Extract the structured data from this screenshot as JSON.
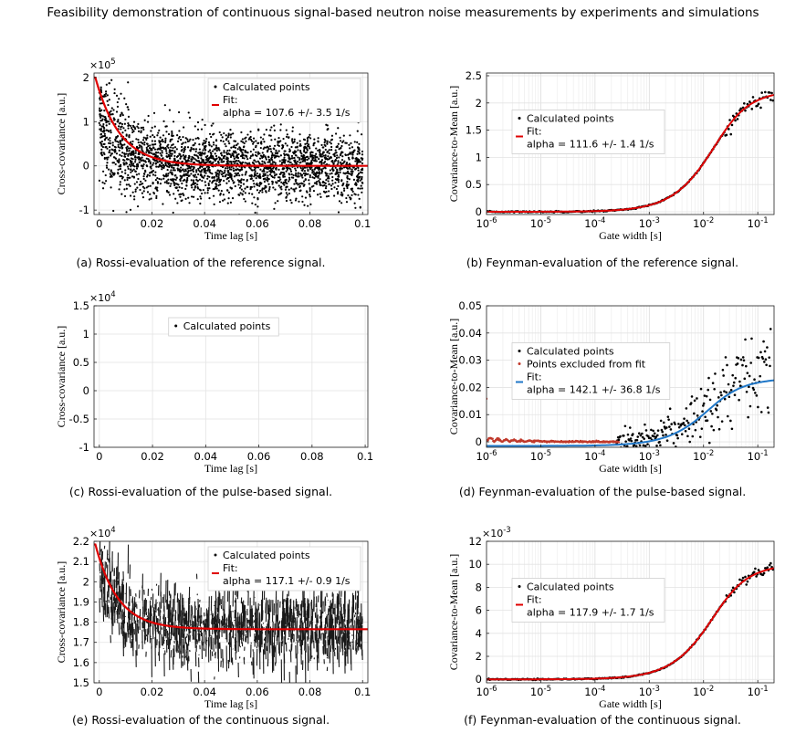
{
  "header": "Feasibility demonstration of continuous signal-based neutron noise measurements by experiments and simulations",
  "chart_data": [
    {
      "id": "a",
      "type": "scatter",
      "caption": "(a) Rossi-evaluation of the reference signal.",
      "xlabel": "Time lag [s]",
      "ylabel": "Cross-covariance [a.u.]",
      "xscale": "linear",
      "xlim": [
        -0.002,
        0.102
      ],
      "ylim": [
        -1.1,
        2.1
      ],
      "exponent": "×10",
      "exponent_power": "5",
      "xticks": [
        0,
        0.02,
        0.04,
        0.06,
        0.08,
        0.1
      ],
      "xticklabels": [
        "0",
        "0.02",
        "0.04",
        "0.06",
        "0.08",
        "0.1"
      ],
      "yticks": [
        -1,
        0,
        1,
        2
      ],
      "yticklabels": [
        "-1",
        "0",
        "1",
        "2"
      ],
      "grid": true,
      "legend_position": "top-right",
      "legend": [
        "Calculated points",
        "Fit:",
        "alpha = 107.6 +/- 3.5 1/s"
      ],
      "series": [
        {
          "name": "Calculated points",
          "kind": "noisy-exp",
          "color": "#000000",
          "offset": 0,
          "amplitude": 1.05,
          "alpha": 107.6,
          "noise": 0.38,
          "n": 2600
        },
        {
          "name": "Fit",
          "kind": "exp-fit",
          "color": "#e00000",
          "offset": 0,
          "amplitude": 2.0,
          "alpha": 107.6
        }
      ]
    },
    {
      "id": "b",
      "type": "scatter",
      "caption": "(b) Feynman-evaluation of the reference signal.",
      "xlabel": "Gate width [s]",
      "ylabel": "Covariance-to-Mean [a.u.]",
      "xscale": "log",
      "xlim": [
        -6,
        -0.7
      ],
      "ylim": [
        -0.05,
        2.55
      ],
      "xticks": [
        -6,
        -5,
        -4,
        -3,
        -2,
        -1
      ],
      "xticklabels": [
        "10",
        "10",
        "10",
        "10",
        "10",
        "10"
      ],
      "xtickpowers": [
        "-6",
        "-5",
        "-4",
        "-3",
        "-2",
        "-1"
      ],
      "yticks": [
        0,
        0.5,
        1,
        1.5,
        2,
        2.5
      ],
      "yticklabels": [
        "0",
        "0.5",
        "1",
        "1.5",
        "2",
        "2.5"
      ],
      "grid": true,
      "legend_position": "center-left",
      "legend": [
        "Calculated points",
        "Fit:",
        "alpha = 111.6 +/- 1.4 1/s"
      ],
      "series": [
        {
          "name": "Calculated points",
          "kind": "feynman",
          "color": "#000000",
          "ymax": 2.25,
          "alpha": 111.6,
          "noise": 0.06,
          "n": 260
        },
        {
          "name": "Fit",
          "kind": "feynman-fit",
          "color": "#e00000",
          "ymax": 2.25,
          "alpha": 111.6
        }
      ]
    },
    {
      "id": "c",
      "type": "scatter",
      "caption": "(c) Rossi-evaluation of the pulse-based signal.",
      "xlabel": "Time lag [s]",
      "ylabel": "Cross-covariance [a.u.]",
      "xscale": "linear",
      "xlim": [
        -0.002,
        0.101
      ],
      "ylim": [
        -1.0,
        1.5
      ],
      "exponent": "×10",
      "exponent_power": "4",
      "xticks": [
        0,
        0.02,
        0.04,
        0.06,
        0.08,
        0.1
      ],
      "xticklabels": [
        "0",
        "0.02",
        "0.04",
        "0.06",
        "0.08",
        "0.1"
      ],
      "yticks": [
        -1,
        -0.5,
        0,
        0.5,
        1,
        1.5
      ],
      "yticklabels": [
        "-1",
        "-0.5",
        "0",
        "0.5",
        "1",
        "1.5"
      ],
      "grid": true,
      "legend_position": "top-center",
      "legend": [
        "Calculated points"
      ],
      "series": [
        {
          "name": "Calculated points",
          "kind": "noise",
          "color": "#000000",
          "offset": 0.05,
          "noise": 0.3,
          "n": 4200
        }
      ]
    },
    {
      "id": "d",
      "type": "scatter",
      "caption": "(d) Feynman-evaluation of the pulse-based signal.",
      "xlabel": "Gate width [s]",
      "ylabel": "Covariance-to-Mean [a.u.]",
      "xscale": "log",
      "xlim": [
        -6,
        -0.7
      ],
      "ylim": [
        -0.002,
        0.05
      ],
      "xticks": [
        -6,
        -5,
        -4,
        -3,
        -2,
        -1
      ],
      "xticklabels": [
        "10",
        "10",
        "10",
        "10",
        "10",
        "10"
      ],
      "xtickpowers": [
        "-6",
        "-5",
        "-4",
        "-3",
        "-2",
        "-1"
      ],
      "yticks": [
        0,
        0.01,
        0.02,
        0.03,
        0.04,
        0.05
      ],
      "yticklabels": [
        "0",
        "0.01",
        "0.02",
        "0.03",
        "0.04",
        "0.05"
      ],
      "grid": true,
      "legend_position": "center-left",
      "legend": [
        "Calculated points",
        "Points excluded from fit",
        "Fit:",
        "alpha = 142.1 +/- 36.8 1/s"
      ],
      "series": [
        {
          "name": "Calculated points",
          "kind": "feynman-noisy",
          "color": "#000000",
          "ymax": 0.025,
          "alpha": 142.1,
          "noise": 0.007,
          "n": 220
        },
        {
          "name": "Points excluded from fit",
          "kind": "excluded",
          "color": "#c0392b",
          "n": 260
        },
        {
          "name": "Fit",
          "kind": "feynman-fit",
          "color": "#1f77c8",
          "ymax": 0.025,
          "offset": -0.0015,
          "alpha": 142.1
        }
      ]
    },
    {
      "id": "e",
      "type": "scatter",
      "caption": "(e) Rossi-evaluation of the continuous signal.",
      "xlabel": "Time lag [s]",
      "ylabel": "Cross-covariance [a.u.]",
      "xscale": "linear",
      "xlim": [
        -0.002,
        0.102
      ],
      "ylim": [
        1.5,
        2.2
      ],
      "exponent": "×10",
      "exponent_power": "4",
      "xticks": [
        0,
        0.02,
        0.04,
        0.06,
        0.08,
        0.1
      ],
      "xticklabels": [
        "0",
        "0.02",
        "0.04",
        "0.06",
        "0.08",
        "0.1"
      ],
      "yticks": [
        1.5,
        1.6,
        1.7,
        1.8,
        1.9,
        2,
        2.1,
        2.2
      ],
      "yticklabels": [
        "1.5",
        "1.6",
        "1.7",
        "1.8",
        "1.9",
        "2",
        "2.1",
        "2.2"
      ],
      "grid": true,
      "legend_position": "top-right",
      "legend": [
        "Calculated points",
        "Fit:",
        "alpha = 117.1 +/- 0.9 1/s"
      ],
      "series": [
        {
          "name": "Calculated points",
          "kind": "dense-exp",
          "color": "#111111",
          "offset": 1.765,
          "amplitude": 0.32,
          "alpha": 117.1,
          "noise": 0.08,
          "n": 1400
        },
        {
          "name": "Fit",
          "kind": "exp-fit",
          "color": "#e00000",
          "offset": 1.765,
          "amplitude": 0.42,
          "alpha": 117.1
        }
      ]
    },
    {
      "id": "f",
      "type": "scatter",
      "caption": "(f) Feynman-evaluation of the continuous signal.",
      "xlabel": "Gate width [s]",
      "ylabel": "Covariance-to-Mean [a.u.]",
      "xscale": "log",
      "xlim": [
        -6,
        -0.7
      ],
      "ylim": [
        -0.3,
        12
      ],
      "exponent": "×10",
      "exponent_power": "-3",
      "xticks": [
        -6,
        -5,
        -4,
        -3,
        -2,
        -1
      ],
      "xticklabels": [
        "10",
        "10",
        "10",
        "10",
        "10",
        "10"
      ],
      "xtickpowers": [
        "-6",
        "-5",
        "-4",
        "-3",
        "-2",
        "-1"
      ],
      "yticks": [
        0,
        2,
        4,
        6,
        8,
        10,
        12
      ],
      "yticklabels": [
        "0",
        "2",
        "4",
        "6",
        "8",
        "10",
        "12"
      ],
      "grid": true,
      "legend_position": "center-left",
      "legend": [
        "Calculated points",
        "Fit:",
        "alpha = 117.9 +/- 1.7 1/s"
      ],
      "series": [
        {
          "name": "Calculated points",
          "kind": "feynman",
          "color": "#000000",
          "ymax": 10.1,
          "alpha": 117.9,
          "noise": 0.25,
          "n": 260
        },
        {
          "name": "Fit",
          "kind": "feynman-fit",
          "color": "#e00000",
          "ymax": 10.1,
          "alpha": 117.9
        }
      ]
    }
  ]
}
